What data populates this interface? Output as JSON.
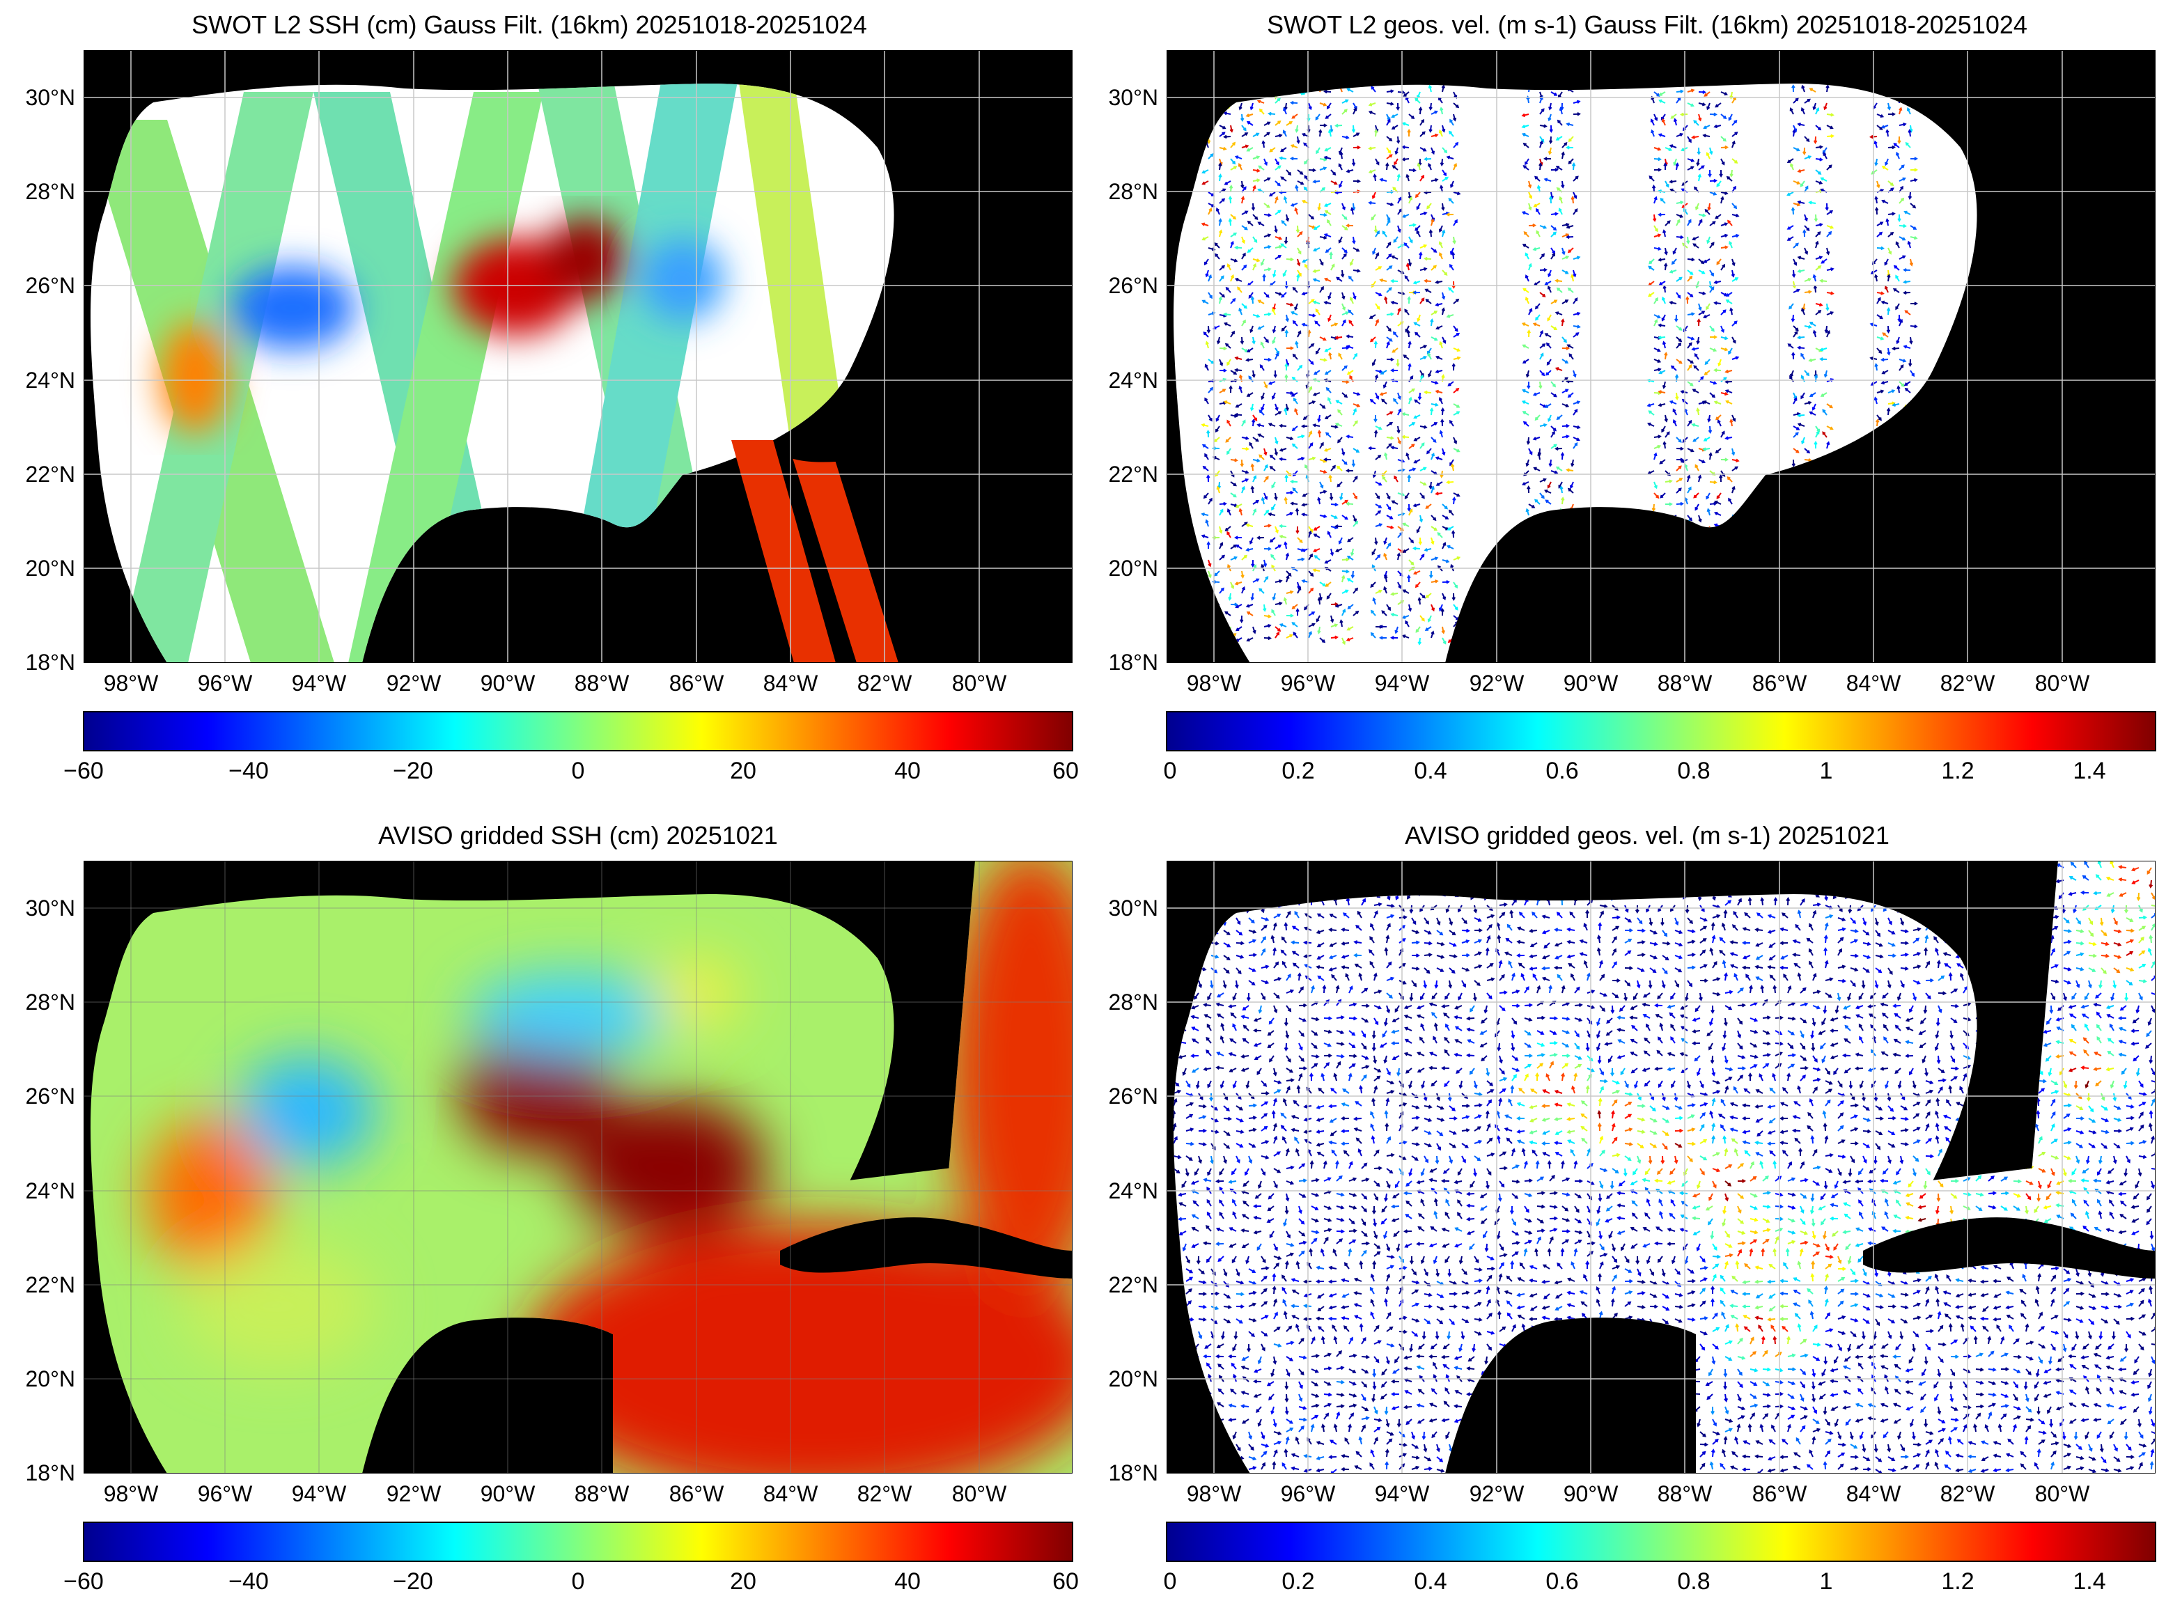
{
  "panels": [
    {
      "id": "swot-ssh",
      "title": "SWOT L2 SSH (cm) Gauss Filt. (16km) 20251018-20251024",
      "lat_ticks": [
        "30°N",
        "28°N",
        "26°N",
        "24°N",
        "22°N",
        "20°N",
        "18°N"
      ],
      "lon_ticks": [
        "98°W",
        "96°W",
        "94°W",
        "92°W",
        "90°W",
        "88°W",
        "86°W",
        "84°W",
        "82°W",
        "80°W"
      ],
      "colorbar": {
        "min": -60,
        "max": 60,
        "ticks": [
          "−60",
          "−40",
          "−20",
          "0",
          "20",
          "40",
          "60"
        ]
      }
    },
    {
      "id": "swot-vel",
      "title": "SWOT L2 geos. vel. (m s-1) Gauss Filt. (16km) 20251018-20251024",
      "lat_ticks": [
        "30°N",
        "28°N",
        "26°N",
        "24°N",
        "22°N",
        "20°N",
        "18°N"
      ],
      "lon_ticks": [
        "98°W",
        "96°W",
        "94°W",
        "92°W",
        "90°W",
        "88°W",
        "86°W",
        "84°W",
        "82°W",
        "80°W"
      ],
      "colorbar": {
        "min": 0,
        "max": 1.5,
        "ticks": [
          "0",
          "0.2",
          "0.4",
          "0.6",
          "0.8",
          "1",
          "1.2",
          "1.4"
        ]
      }
    },
    {
      "id": "aviso-ssh",
      "title": "AVISO gridded SSH (cm) 20251021",
      "lat_ticks": [
        "30°N",
        "28°N",
        "26°N",
        "24°N",
        "22°N",
        "20°N",
        "18°N"
      ],
      "lon_ticks": [
        "98°W",
        "96°W",
        "94°W",
        "92°W",
        "90°W",
        "88°W",
        "86°W",
        "84°W",
        "82°W",
        "80°W"
      ],
      "colorbar": {
        "min": -60,
        "max": 60,
        "ticks": [
          "−60",
          "−40",
          "−20",
          "0",
          "20",
          "40",
          "60"
        ]
      }
    },
    {
      "id": "aviso-vel",
      "title": "AVISO gridded geos. vel. (m s-1)  20251021",
      "lat_ticks": [
        "30°N",
        "28°N",
        "26°N",
        "24°N",
        "22°N",
        "20°N",
        "18°N"
      ],
      "lon_ticks": [
        "98°W",
        "96°W",
        "94°W",
        "92°W",
        "90°W",
        "88°W",
        "86°W",
        "84°W",
        "82°W",
        "80°W"
      ],
      "colorbar": {
        "min": 0,
        "max": 1.5,
        "ticks": [
          "0",
          "0.2",
          "0.4",
          "0.6",
          "0.8",
          "1",
          "1.2",
          "1.4"
        ]
      }
    }
  ],
  "map_extent": {
    "lon": [
      -99,
      -78
    ],
    "lat": [
      18,
      31
    ]
  },
  "colormap": "jet",
  "colors": {
    "land": "#000000",
    "no_data": "#ffffff",
    "grid": "#c8c8c8"
  }
}
